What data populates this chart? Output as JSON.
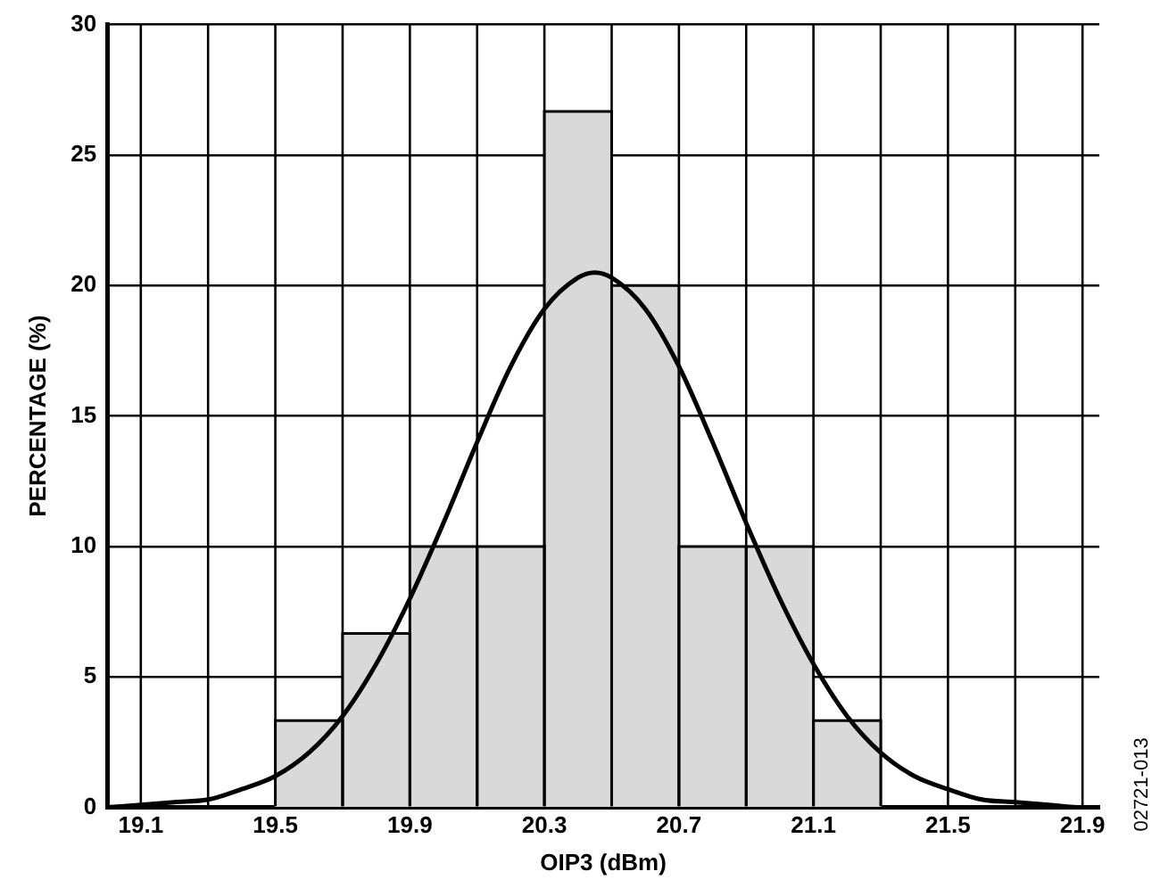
{
  "chart_data": {
    "type": "histogram",
    "xlabel": "OIP3 (dBm)",
    "ylabel": "PERCENTAGE (%)",
    "bins": [
      19.5,
      19.7,
      19.9,
      20.1,
      20.3,
      20.5,
      20.7,
      20.9,
      21.1,
      21.3
    ],
    "values": [
      3.33,
      6.67,
      10,
      10,
      26.67,
      20,
      10,
      10,
      3.33
    ],
    "color": "#d9d9d9",
    "series": [
      {
        "type": "line",
        "color": "#000000",
        "x": [
          19.0,
          19.1,
          19.2,
          19.3,
          19.4,
          19.5,
          19.6,
          19.7,
          19.8,
          19.9,
          20.0,
          20.1,
          20.2,
          20.3,
          20.4,
          20.45,
          20.5,
          20.6,
          20.7,
          20.8,
          20.9,
          21.0,
          21.1,
          21.2,
          21.3,
          21.4,
          21.5,
          21.6,
          21.7,
          21.8,
          21.9,
          21.95
        ],
        "values": [
          0.0,
          0.1,
          0.2,
          0.3,
          0.7,
          1.2,
          2.1,
          3.5,
          5.5,
          8.0,
          10.9,
          14.0,
          16.9,
          19.1,
          20.3,
          20.5,
          20.3,
          19.1,
          16.9,
          14.0,
          10.9,
          8.0,
          5.5,
          3.5,
          2.1,
          1.2,
          0.7,
          0.3,
          0.2,
          0.1,
          0.0,
          0.0
        ]
      }
    ],
    "xlim": [
      19.0,
      21.95
    ],
    "xticks": [
      19.1,
      {
        "value": 19.3,
        "label": null
      },
      19.5,
      {
        "value": 19.7,
        "label": null
      },
      19.9,
      {
        "value": 20.1,
        "label": null
      },
      20.3,
      {
        "value": 20.5,
        "label": null
      },
      20.7,
      {
        "value": 20.9,
        "label": null
      },
      21.1,
      {
        "value": 21.3,
        "label": null
      },
      21.5,
      {
        "value": 21.7,
        "label": null
      },
      21.9
    ],
    "ylim": [
      0,
      30
    ],
    "yticks": [
      0,
      5,
      10,
      15,
      20,
      25,
      30
    ],
    "grid": true,
    "marker": "none",
    "line_style": "solid",
    "legend": false,
    "annotations": [
      "02721-013"
    ]
  }
}
